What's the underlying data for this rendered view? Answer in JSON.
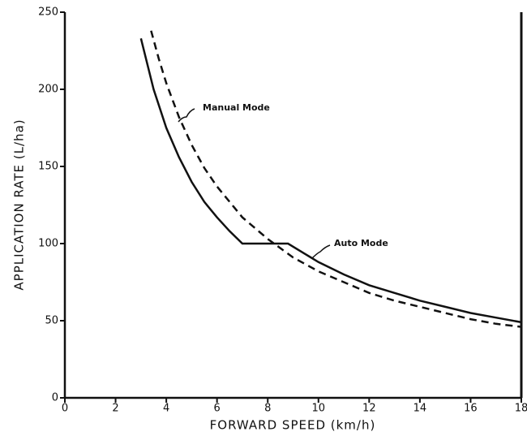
{
  "chart_data": {
    "type": "line",
    "x_label": "FORWARD SPEED (km/h)",
    "y_label": "APPLICATION RATE (L/ha)",
    "xlim": [
      0,
      18
    ],
    "ylim": [
      0,
      250
    ],
    "xticks": [
      0,
      2,
      4,
      6,
      8,
      10,
      12,
      14,
      16,
      18
    ],
    "yticks": [
      0,
      50,
      100,
      150,
      200,
      250
    ],
    "series": [
      {
        "name": "Auto Mode",
        "color": "#111111",
        "dash": false,
        "x": [
          3,
          3.5,
          4,
          4.5,
          5,
          5.5,
          6,
          6.5,
          7,
          8,
          8.8,
          9.5,
          10,
          11,
          12,
          13,
          14,
          15,
          16,
          17,
          18
        ],
        "values": [
          233,
          200,
          175,
          156,
          140,
          127,
          117,
          108,
          100,
          100,
          100,
          93,
          88,
          80,
          73,
          68,
          63,
          59,
          55,
          52,
          49
        ]
      },
      {
        "name": "Manual Mode",
        "color": "#111111",
        "dash": true,
        "x": [
          3.4,
          3.7,
          4,
          4.5,
          5,
          5.5,
          6,
          7,
          8,
          9,
          10,
          11,
          12,
          13,
          14,
          15,
          16,
          17,
          18
        ],
        "values": [
          238,
          220,
          204,
          182,
          164,
          149,
          137,
          117,
          103,
          91,
          82,
          75,
          68,
          63,
          59,
          55,
          51,
          48,
          46
        ]
      }
    ]
  }
}
